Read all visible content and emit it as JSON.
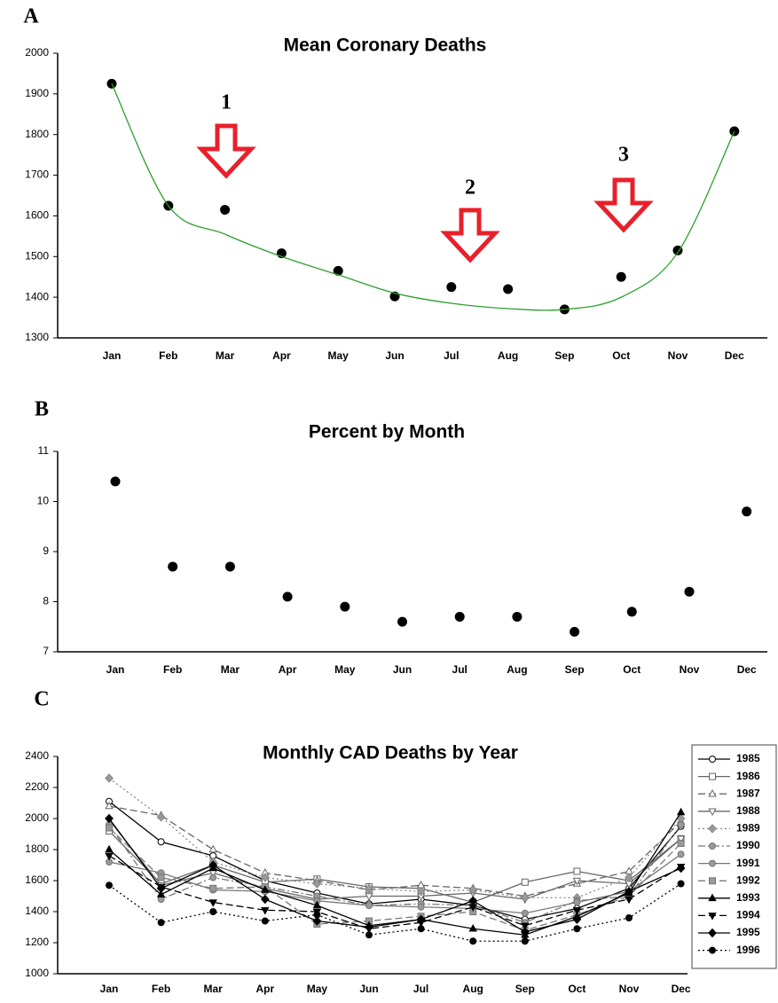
{
  "chart_data": [
    {
      "type": "scatter",
      "panel": "A",
      "title": "Mean Coronary Deaths",
      "categories": [
        "Jan",
        "Feb",
        "Mar",
        "Apr",
        "May",
        "Jun",
        "Jul",
        "Aug",
        "Sep",
        "Oct",
        "Nov",
        "Dec"
      ],
      "series": [
        {
          "color": "#000000",
          "values": [
            1925,
            1625,
            1615,
            1508,
            1465,
            1402,
            1425,
            1420,
            1370,
            1450,
            1515,
            1808
          ]
        },
        {
          "color": "#2ca02c",
          "smooth": true,
          "values": [
            1925,
            1625,
            1555,
            1500,
            1455,
            1410,
            1385,
            1372,
            1370,
            1400,
            1510,
            1808
          ]
        }
      ],
      "annotations": [
        "1",
        "2",
        "3"
      ],
      "ylim": [
        1300,
        2000
      ],
      "yticks": [
        1300,
        1400,
        1500,
        1600,
        1700,
        1800,
        1900,
        2000
      ]
    },
    {
      "type": "scatter",
      "panel": "B",
      "title": "Percent by Month",
      "categories": [
        "Jan",
        "Feb",
        "Mar",
        "Apr",
        "May",
        "Jun",
        "Jul",
        "Aug",
        "Sep",
        "Oct",
        "Nov",
        "Dec"
      ],
      "series": [
        {
          "color": "#000000",
          "values": [
            10.4,
            8.7,
            8.7,
            8.1,
            7.9,
            7.6,
            7.7,
            7.7,
            7.4,
            7.8,
            8.2,
            9.8
          ]
        }
      ],
      "ylim": [
        7,
        11
      ],
      "yticks": [
        7,
        8,
        9,
        10,
        11
      ]
    },
    {
      "type": "line",
      "panel": "C",
      "title": "Monthly CAD Deaths by Year",
      "categories": [
        "Jan",
        "Feb",
        "Mar",
        "Apr",
        "May",
        "Jun",
        "Jul",
        "Aug",
        "Sep",
        "Oct",
        "Nov",
        "Dec"
      ],
      "series": [
        {
          "name": "1985",
          "color": "#000000",
          "marker": "circle",
          "fill": "#ffffff",
          "dash": "solid",
          "values": [
            2110,
            1850,
            1760,
            1600,
            1520,
            1450,
            1480,
            1440,
            1350,
            1420,
            1550,
            1950
          ]
        },
        {
          "name": "1986",
          "color": "#666666",
          "marker": "square",
          "fill": "#ffffff",
          "dash": "solid",
          "values": [
            1920,
            1580,
            1700,
            1590,
            1610,
            1560,
            1550,
            1460,
            1590,
            1660,
            1600,
            1870
          ]
        },
        {
          "name": "1987",
          "color": "#666666",
          "marker": "triangle",
          "fill": "#ffffff",
          "dash": "dash",
          "values": [
            2080,
            2020,
            1800,
            1650,
            1600,
            1540,
            1570,
            1550,
            1500,
            1580,
            1660,
            1980
          ]
        },
        {
          "name": "1988",
          "color": "#666666",
          "marker": "down",
          "fill": "#ffffff",
          "dash": "solid",
          "values": [
            1990,
            1570,
            1650,
            1550,
            1480,
            1500,
            1500,
            1520,
            1480,
            1600,
            1580,
            1870
          ]
        },
        {
          "name": "1989",
          "color": "#888888",
          "marker": "diamond",
          "fill": "#999999",
          "dash": "dot",
          "values": [
            2260,
            2010,
            1720,
            1620,
            1580,
            1550,
            1530,
            1540,
            1490,
            1490,
            1620,
            2000
          ]
        },
        {
          "name": "1990",
          "color": "#777777",
          "marker": "circle",
          "fill": "#999999",
          "dash": "dashdot",
          "values": [
            1960,
            1480,
            1620,
            1560,
            1500,
            1440,
            1450,
            1440,
            1330,
            1470,
            1500,
            1960
          ]
        },
        {
          "name": "1991",
          "color": "#777777",
          "marker": "circle",
          "fill": "#999999",
          "dash": "solid",
          "values": [
            1720,
            1650,
            1540,
            1530,
            1470,
            1440,
            1430,
            1420,
            1390,
            1460,
            1530,
            1770
          ]
        },
        {
          "name": "1992",
          "color": "#777777",
          "marker": "square",
          "fill": "#999999",
          "dash": "dash",
          "values": [
            1940,
            1620,
            1550,
            1560,
            1320,
            1340,
            1370,
            1400,
            1280,
            1380,
            1500,
            1840
          ]
        },
        {
          "name": "1993",
          "color": "#000000",
          "marker": "triangle",
          "fill": "#000000",
          "dash": "solid",
          "values": [
            1800,
            1510,
            1680,
            1540,
            1440,
            1310,
            1350,
            1290,
            1250,
            1370,
            1520,
            2040
          ]
        },
        {
          "name": "1994",
          "color": "#000000",
          "marker": "down",
          "fill": "#000000",
          "dash": "dash",
          "values": [
            1760,
            1560,
            1460,
            1410,
            1400,
            1290,
            1330,
            1430,
            1310,
            1410,
            1480,
            1690
          ]
        },
        {
          "name": "1995",
          "color": "#000000",
          "marker": "diamond",
          "fill": "#000000",
          "dash": "solid",
          "values": [
            2000,
            1550,
            1700,
            1480,
            1340,
            1300,
            1350,
            1470,
            1270,
            1350,
            1530,
            1680
          ]
        },
        {
          "name": "1996",
          "color": "#000000",
          "marker": "circle",
          "fill": "#000000",
          "dash": "dot",
          "values": [
            1570,
            1330,
            1400,
            1340,
            1380,
            1250,
            1290,
            1210,
            1210,
            1290,
            1360,
            1580
          ]
        }
      ],
      "legend": "right",
      "ylim": [
        1000,
        2400
      ],
      "yticks": [
        1000,
        1200,
        1400,
        1600,
        1800,
        2000,
        2200,
        2400
      ]
    }
  ]
}
